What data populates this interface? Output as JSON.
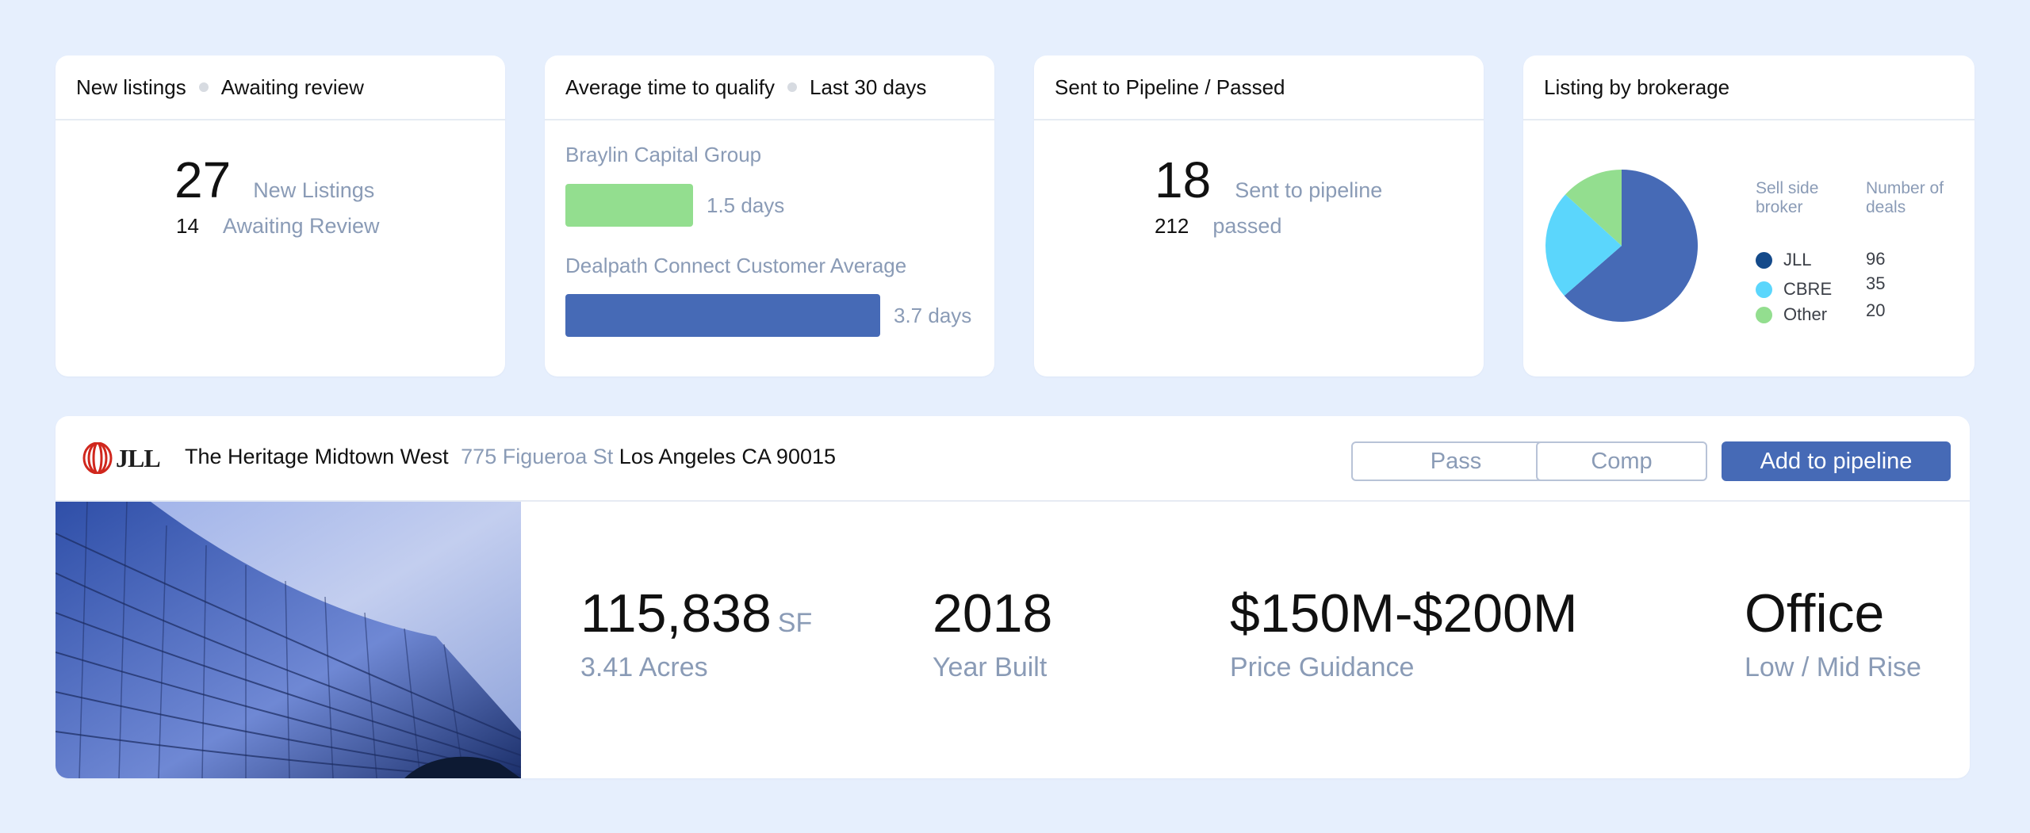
{
  "colors": {
    "background": "#e6effd",
    "accent": "#466ab6",
    "green": "#93de8f",
    "cyan": "#5bd6fc",
    "navy": "#144a8a",
    "muted": "#8a9bb6"
  },
  "cards": {
    "new_listings": {
      "title": "New listings",
      "subtitle": "Awaiting review",
      "new_count": "27",
      "new_label": "New Listings",
      "awaiting_count": "14",
      "awaiting_label": "Awaiting Review"
    },
    "avg_time": {
      "title": "Average time to qualify",
      "subtitle": "Last 30 days",
      "bars": [
        {
          "label": "Braylin Capital Group",
          "value": 1.5,
          "value_label": "1.5 days",
          "color": "#93de8f"
        },
        {
          "label": "Dealpath Connect Customer Average",
          "value": 3.7,
          "value_label": "3.7 days",
          "color": "#466ab6"
        }
      ]
    },
    "pipeline": {
      "title": "Sent to Pipeline / Passed",
      "sent_count": "18",
      "sent_label": "Sent to pipeline",
      "passed_count": "212",
      "passed_label": "passed"
    },
    "brokerage": {
      "title": "Listing by brokerage",
      "col1": "Sell side broker",
      "col2": "Number of deals",
      "items": [
        {
          "name": "JLL",
          "count": "96",
          "color": "#144a8a"
        },
        {
          "name": "CBRE",
          "count": "35",
          "color": "#5bd6fc"
        },
        {
          "name": "Other",
          "count": "20",
          "color": "#93de8f"
        }
      ]
    }
  },
  "chart_data": {
    "type": "pie",
    "title": "Listing by brokerage",
    "labels": [
      "JLL",
      "CBRE",
      "Other"
    ],
    "values": [
      96,
      35,
      20
    ]
  },
  "listing": {
    "logo_text": "JLL",
    "name": "The Heritage Midtown West",
    "street": "775 Figueroa St",
    "city": "Los Angeles CA 90015",
    "actions": {
      "pass": "Pass",
      "comp": "Comp",
      "add": "Add to pipeline"
    },
    "metrics": {
      "area_value": "115,838",
      "area_unit": "SF",
      "area_sub": "3.41 Acres",
      "year_value": "2018",
      "year_sub": "Year Built",
      "price_value": "$150M-$200M",
      "price_sub": "Price Guidance",
      "type_value": "Office",
      "type_sub": "Low / Mid Rise"
    }
  }
}
